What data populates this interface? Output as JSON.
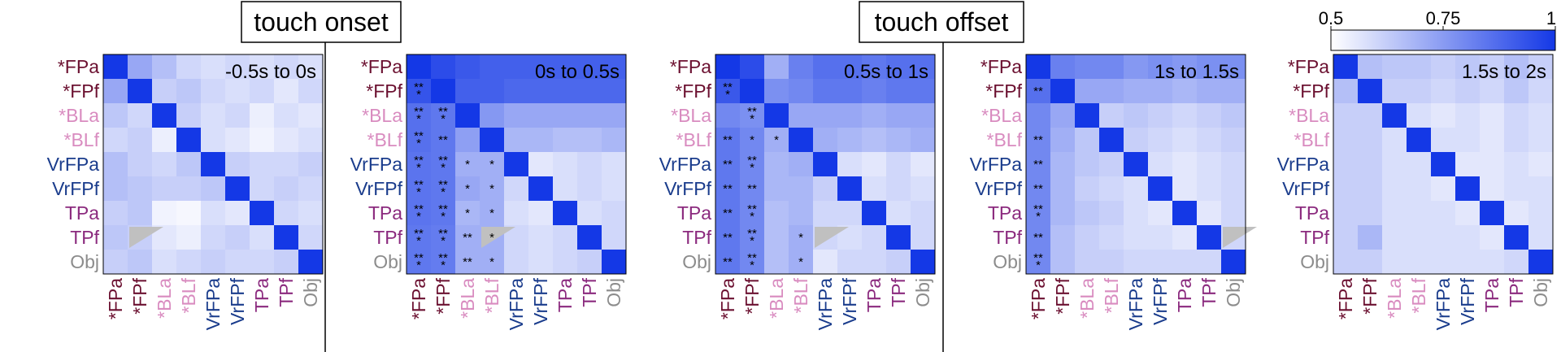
{
  "headers": {
    "onset": "touch onset",
    "offset": "touch offset"
  },
  "colorbar": {
    "ticks": [
      "0.5",
      "0.75",
      "1"
    ],
    "vmin": 0.5,
    "vmax": 1,
    "low_color": "#ffffff",
    "high_color": "#1438e6"
  },
  "label_colors": {
    "dark": "#6b1030",
    "pink": "#d98cc0",
    "blue": "#1a3c8c",
    "purple": "#8b2a7e",
    "gray": "#8c8c8c",
    "nan": "#c0c0c0"
  },
  "labels": [
    {
      "text": "*FPa",
      "color": "dark"
    },
    {
      "text": "*FPf",
      "color": "dark"
    },
    {
      "text": "*BLa",
      "color": "pink"
    },
    {
      "text": "*BLf",
      "color": "pink"
    },
    {
      "text": "VrFPa",
      "color": "blue"
    },
    {
      "text": "VrFPf",
      "color": "blue"
    },
    {
      "text": "TPa",
      "color": "purple"
    },
    {
      "text": "TPf",
      "color": "purple"
    },
    {
      "text": "Obj",
      "color": "gray"
    }
  ],
  "chart_data": [
    {
      "type": "heatmap",
      "title": "-0.5s to 0s",
      "nan_triangle": {
        "row": 7,
        "col": 1
      },
      "values": [
        [
          1.0,
          0.72,
          0.66,
          0.6,
          0.58,
          0.6,
          0.58,
          0.6,
          0.58
        ],
        [
          0.72,
          1.0,
          0.62,
          0.64,
          0.6,
          0.58,
          0.6,
          0.56,
          0.6
        ],
        [
          0.64,
          0.6,
          1.0,
          0.62,
          0.58,
          0.6,
          0.54,
          0.58,
          0.56
        ],
        [
          0.6,
          0.62,
          0.54,
          1.0,
          0.58,
          0.56,
          0.53,
          0.56,
          0.58
        ],
        [
          0.66,
          0.62,
          0.6,
          0.64,
          1.0,
          0.62,
          0.6,
          0.6,
          0.62
        ],
        [
          0.66,
          0.64,
          0.62,
          0.62,
          0.64,
          1.0,
          0.6,
          0.62,
          0.6
        ],
        [
          0.62,
          0.64,
          0.53,
          0.52,
          0.58,
          0.56,
          1.0,
          0.6,
          0.58
        ],
        [
          0.64,
          0.62,
          0.56,
          0.54,
          0.6,
          0.62,
          0.58,
          1.0,
          0.6
        ],
        [
          0.62,
          0.64,
          0.58,
          0.6,
          0.62,
          0.6,
          0.6,
          0.62,
          1.0
        ]
      ],
      "stars": []
    },
    {
      "type": "heatmap",
      "title": "0s to 0.5s",
      "nan_triangle": {
        "row": 7,
        "col": 3
      },
      "values": [
        [
          1.0,
          0.95,
          0.92,
          0.9,
          0.9,
          0.9,
          0.9,
          0.9,
          0.9
        ],
        [
          0.93,
          1.0,
          0.9,
          0.9,
          0.88,
          0.88,
          0.88,
          0.88,
          0.88
        ],
        [
          0.86,
          0.84,
          1.0,
          0.76,
          0.72,
          0.72,
          0.72,
          0.72,
          0.72
        ],
        [
          0.86,
          0.84,
          0.74,
          1.0,
          0.68,
          0.68,
          0.66,
          0.66,
          0.68
        ],
        [
          0.85,
          0.84,
          0.7,
          0.7,
          1.0,
          0.56,
          0.58,
          0.6,
          0.58
        ],
        [
          0.85,
          0.84,
          0.72,
          0.7,
          0.6,
          1.0,
          0.58,
          0.6,
          0.58
        ],
        [
          0.85,
          0.84,
          0.68,
          0.7,
          0.58,
          0.56,
          1.0,
          0.58,
          0.6
        ],
        [
          0.84,
          0.83,
          0.7,
          0.7,
          0.6,
          0.58,
          0.6,
          1.0,
          0.6
        ],
        [
          0.84,
          0.83,
          0.7,
          0.7,
          0.6,
          0.58,
          0.6,
          0.62,
          1.0
        ]
      ],
      "stars": [
        [
          1,
          0,
          "**\n*"
        ],
        [
          2,
          0,
          "**\n*"
        ],
        [
          2,
          1,
          "**\n*"
        ],
        [
          3,
          0,
          "**\n*"
        ],
        [
          3,
          1,
          "**"
        ],
        [
          4,
          0,
          "**\n*"
        ],
        [
          4,
          1,
          "**\n*"
        ],
        [
          4,
          2,
          "*"
        ],
        [
          4,
          3,
          "*"
        ],
        [
          5,
          0,
          "**\n*"
        ],
        [
          5,
          1,
          "**\n*"
        ],
        [
          5,
          2,
          "*"
        ],
        [
          5,
          3,
          "*"
        ],
        [
          6,
          0,
          "**\n*"
        ],
        [
          6,
          1,
          "**\n*"
        ],
        [
          6,
          2,
          "*"
        ],
        [
          6,
          3,
          "*"
        ],
        [
          7,
          0,
          "**\n*"
        ],
        [
          7,
          1,
          "**\n*"
        ],
        [
          7,
          2,
          "**"
        ],
        [
          7,
          3,
          "*"
        ],
        [
          8,
          0,
          "**\n*"
        ],
        [
          8,
          1,
          "**\n*"
        ],
        [
          8,
          2,
          "**"
        ],
        [
          8,
          3,
          "*"
        ]
      ]
    },
    {
      "type": "heatmap",
      "title": "0.5s to 1s",
      "nan_triangle": {
        "row": 7,
        "col": 4
      },
      "values": [
        [
          1.0,
          0.95,
          0.7,
          0.82,
          0.86,
          0.86,
          0.84,
          0.86,
          0.86
        ],
        [
          0.92,
          1.0,
          0.78,
          0.8,
          0.84,
          0.84,
          0.82,
          0.84,
          0.84
        ],
        [
          0.8,
          0.78,
          1.0,
          0.72,
          0.72,
          0.72,
          0.7,
          0.72,
          0.72
        ],
        [
          0.84,
          0.8,
          0.7,
          1.0,
          0.7,
          0.68,
          0.66,
          0.68,
          0.7
        ],
        [
          0.84,
          0.8,
          0.68,
          0.7,
          1.0,
          0.58,
          0.56,
          0.6,
          0.56
        ],
        [
          0.84,
          0.8,
          0.68,
          0.68,
          0.62,
          1.0,
          0.58,
          0.6,
          0.58
        ],
        [
          0.84,
          0.8,
          0.66,
          0.68,
          0.6,
          0.6,
          1.0,
          0.58,
          0.6
        ],
        [
          0.84,
          0.8,
          0.66,
          0.7,
          0.6,
          0.58,
          0.6,
          1.0,
          0.6
        ],
        [
          0.84,
          0.8,
          0.66,
          0.7,
          0.56,
          0.6,
          0.6,
          0.62,
          1.0
        ]
      ],
      "stars": [
        [
          1,
          0,
          "**\n*"
        ],
        [
          2,
          1,
          "**\n*"
        ],
        [
          3,
          0,
          "**"
        ],
        [
          3,
          1,
          "*"
        ],
        [
          3,
          2,
          "*"
        ],
        [
          4,
          0,
          "**"
        ],
        [
          4,
          1,
          "**\n*"
        ],
        [
          5,
          0,
          "**"
        ],
        [
          5,
          1,
          "**"
        ],
        [
          6,
          0,
          "**"
        ],
        [
          6,
          1,
          "**\n*"
        ],
        [
          7,
          0,
          "**"
        ],
        [
          7,
          1,
          "**\n*"
        ],
        [
          7,
          3,
          "*"
        ],
        [
          8,
          0,
          "**"
        ],
        [
          8,
          1,
          "**\n*"
        ],
        [
          8,
          3,
          "*"
        ]
      ]
    },
    {
      "type": "heatmap",
      "title": "1s to 1.5s",
      "nan_triangle": {
        "row": 7,
        "col": 8
      },
      "values": [
        [
          1.0,
          0.82,
          0.8,
          0.8,
          0.76,
          0.78,
          0.76,
          0.78,
          0.78
        ],
        [
          0.86,
          1.0,
          0.72,
          0.72,
          0.7,
          0.7,
          0.68,
          0.7,
          0.7
        ],
        [
          0.8,
          0.72,
          1.0,
          0.62,
          0.64,
          0.62,
          0.6,
          0.62,
          0.64
        ],
        [
          0.8,
          0.7,
          0.64,
          1.0,
          0.62,
          0.6,
          0.58,
          0.6,
          0.62
        ],
        [
          0.8,
          0.68,
          0.64,
          0.62,
          1.0,
          0.58,
          0.56,
          0.58,
          0.6
        ],
        [
          0.8,
          0.68,
          0.62,
          0.6,
          0.58,
          1.0,
          0.56,
          0.58,
          0.6
        ],
        [
          0.8,
          0.68,
          0.64,
          0.62,
          0.58,
          0.56,
          1.0,
          0.56,
          0.6
        ],
        [
          0.8,
          0.66,
          0.62,
          0.6,
          0.58,
          0.58,
          0.56,
          1.0,
          0.6
        ],
        [
          0.8,
          0.66,
          0.62,
          0.62,
          0.6,
          0.6,
          0.6,
          0.6,
          1.0
        ]
      ],
      "stars": [
        [
          1,
          0,
          "**"
        ],
        [
          3,
          0,
          "**"
        ],
        [
          4,
          0,
          "**"
        ],
        [
          5,
          0,
          "**"
        ],
        [
          6,
          0,
          "**\n*"
        ],
        [
          7,
          0,
          "**"
        ],
        [
          8,
          0,
          "**\n*"
        ]
      ]
    },
    {
      "type": "heatmap",
      "title": "1.5s to 2s",
      "nan_triangle": null,
      "values": [
        [
          1.0,
          0.66,
          0.64,
          0.64,
          0.62,
          0.64,
          0.62,
          0.66,
          0.62
        ],
        [
          0.66,
          1.0,
          0.62,
          0.62,
          0.6,
          0.62,
          0.6,
          0.64,
          0.6
        ],
        [
          0.62,
          0.62,
          1.0,
          0.58,
          0.56,
          0.58,
          0.56,
          0.6,
          0.58
        ],
        [
          0.62,
          0.62,
          0.58,
          1.0,
          0.58,
          0.58,
          0.56,
          0.6,
          0.58
        ],
        [
          0.62,
          0.62,
          0.58,
          0.58,
          1.0,
          0.56,
          0.56,
          0.58,
          0.56
        ],
        [
          0.62,
          0.62,
          0.58,
          0.58,
          0.56,
          1.0,
          0.56,
          0.58,
          0.58
        ],
        [
          0.62,
          0.62,
          0.58,
          0.58,
          0.58,
          0.56,
          1.0,
          0.56,
          0.58
        ],
        [
          0.62,
          0.68,
          0.58,
          0.58,
          0.58,
          0.58,
          0.56,
          1.0,
          0.58
        ],
        [
          0.62,
          0.62,
          0.58,
          0.58,
          0.58,
          0.58,
          0.58,
          0.6,
          1.0
        ]
      ],
      "stars": []
    }
  ]
}
